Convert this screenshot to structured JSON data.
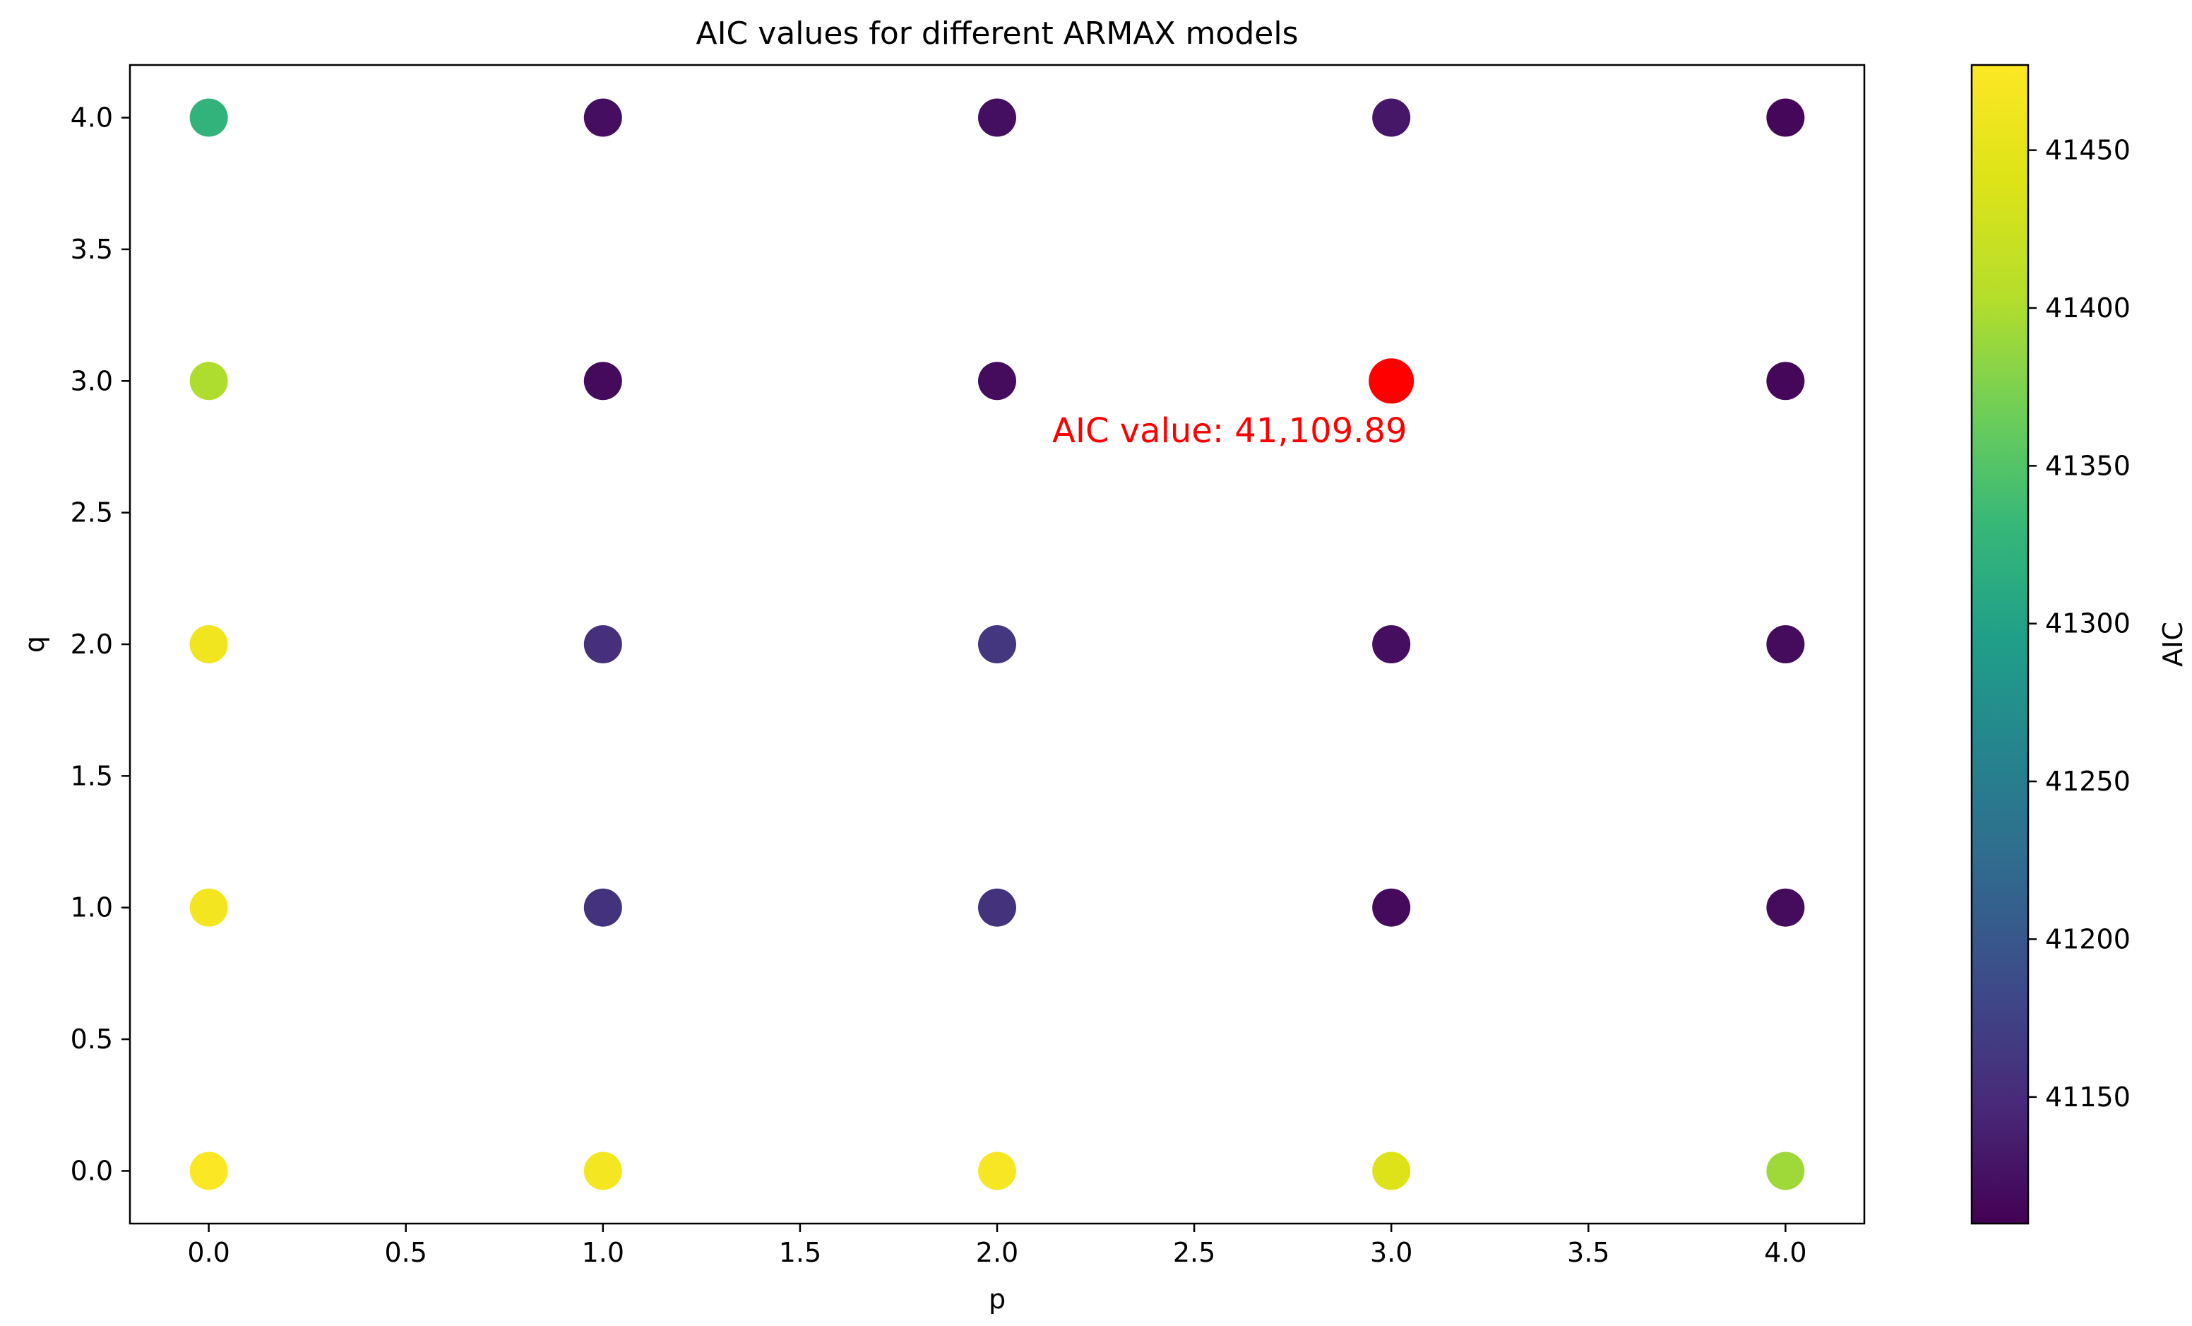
{
  "chart_data": {
    "type": "scatter",
    "title": "AIC values for different ARMAX models",
    "xlabel": "p",
    "ylabel": "q",
    "xlim": [
      -0.2,
      4.2
    ],
    "ylim": [
      -0.2,
      4.2
    ],
    "xticks": [
      0.0,
      0.5,
      1.0,
      1.5,
      2.0,
      2.5,
      3.0,
      3.5,
      4.0
    ],
    "yticks": [
      0.0,
      0.5,
      1.0,
      1.5,
      2.0,
      2.5,
      3.0,
      3.5,
      4.0
    ],
    "grid": false,
    "colormap": "viridis",
    "colorbar": {
      "label": "AIC",
      "range": [
        41109.89,
        41477
      ],
      "ticks": [
        41150,
        41200,
        41250,
        41300,
        41350,
        41400,
        41450
      ]
    },
    "points": [
      {
        "p": 0,
        "q": 0,
        "aic": 41475
      },
      {
        "p": 0,
        "q": 1,
        "aic": 41465
      },
      {
        "p": 0,
        "q": 2,
        "aic": 41463
      },
      {
        "p": 0,
        "q": 3,
        "aic": 41400
      },
      {
        "p": 0,
        "q": 4,
        "aic": 41325
      },
      {
        "p": 1,
        "q": 0,
        "aic": 41468
      },
      {
        "p": 1,
        "q": 1,
        "aic": 41158
      },
      {
        "p": 1,
        "q": 2,
        "aic": 41155
      },
      {
        "p": 1,
        "q": 3,
        "aic": 41118
      },
      {
        "p": 1,
        "q": 4,
        "aic": 41122
      },
      {
        "p": 2,
        "q": 0,
        "aic": 41470
      },
      {
        "p": 2,
        "q": 1,
        "aic": 41158
      },
      {
        "p": 2,
        "q": 2,
        "aic": 41162
      },
      {
        "p": 2,
        "q": 3,
        "aic": 41120
      },
      {
        "p": 2,
        "q": 4,
        "aic": 41123
      },
      {
        "p": 3,
        "q": 0,
        "aic": 41440
      },
      {
        "p": 3,
        "q": 1,
        "aic": 41118
      },
      {
        "p": 3,
        "q": 2,
        "aic": 41122
      },
      {
        "p": 3,
        "q": 3,
        "aic": 41109.89
      },
      {
        "p": 3,
        "q": 4,
        "aic": 41130
      },
      {
        "p": 4,
        "q": 0,
        "aic": 41392
      },
      {
        "p": 4,
        "q": 1,
        "aic": 41120
      },
      {
        "p": 4,
        "q": 2,
        "aic": 41120
      },
      {
        "p": 4,
        "q": 3,
        "aic": 41116
      },
      {
        "p": 4,
        "q": 4,
        "aic": 41116
      }
    ],
    "highlight": {
      "p": 3,
      "q": 3,
      "color": "#ff0000",
      "annotation": "AIC value: 41,109.89"
    }
  }
}
